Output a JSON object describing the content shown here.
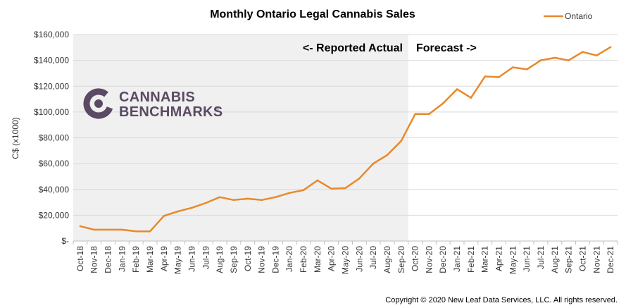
{
  "chart_data": {
    "type": "line",
    "title": "Monthly Ontario Legal Cannabis Sales",
    "ylabel": "C$ (x1000)",
    "xlabel": "",
    "ylim": [
      0,
      160000
    ],
    "yticks": [
      "$-",
      "$20,000",
      "$40,000",
      "$60,000",
      "$80,000",
      "$100,000",
      "$120,000",
      "$140,000",
      "$160,000"
    ],
    "ytick_values": [
      0,
      20000,
      40000,
      60000,
      80000,
      100000,
      120000,
      140000,
      160000
    ],
    "grid": true,
    "legend_position": "top-right",
    "categories": [
      "Oct-18",
      "Nov-18",
      "Dec-18",
      "Jan-19",
      "Feb-19",
      "Mar-19",
      "Apr-19",
      "May-19",
      "Jun-19",
      "Jul-19",
      "Aug-19",
      "Sep-19",
      "Oct-19",
      "Nov-19",
      "Dec-19",
      "Jan-20",
      "Feb-20",
      "Mar-20",
      "Apr-20",
      "May-20",
      "Jun-20",
      "Jul-20",
      "Aug-20",
      "Sep-20",
      "Oct-20",
      "Nov-20",
      "Dec-20",
      "Jan-21",
      "Feb-21",
      "Mar-21",
      "Apr-21",
      "May-21",
      "Jun-21",
      "Jul-21",
      "Aug-21",
      "Sep-21",
      "Oct-21",
      "Nov-21",
      "Dec-21"
    ],
    "series": [
      {
        "name": "Ontario",
        "color": "#e8892b",
        "values": [
          11500,
          8800,
          8800,
          8800,
          7500,
          7500,
          19500,
          23000,
          25800,
          29500,
          34000,
          31800,
          32800,
          31800,
          34000,
          37300,
          39400,
          47000,
          40500,
          41000,
          48500,
          60000,
          66700,
          77600,
          98400,
          98400,
          106700,
          117600,
          111000,
          127500,
          127000,
          134600,
          133000,
          140000,
          142000,
          140000,
          146500,
          143800,
          150300
        ]
      }
    ],
    "shaded_region": {
      "from": "Oct-18",
      "to": "Sep-20",
      "color": "#f0f0f0"
    },
    "annotations": [
      "<- Reported Actual",
      "Forecast ->"
    ]
  },
  "logo": {
    "line1": "CANNABIS",
    "line2": "BENCHMARKS",
    "mark": "®",
    "color": "#5b4a63"
  },
  "copyright": "Copyright © 2020 New Leaf Data Services, LLC.  All rights reserved."
}
